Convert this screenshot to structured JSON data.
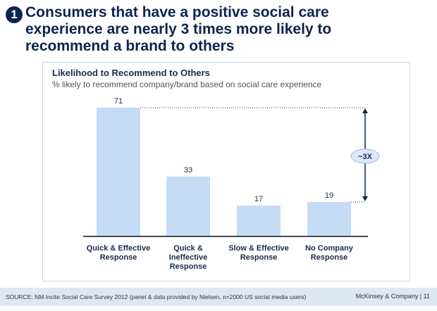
{
  "headline": {
    "number": "1",
    "line1": "Consumers that have a positive social care",
    "line2": "experience are nearly 3 times more likely to",
    "line3": "recommend a brand to others"
  },
  "chart_data": {
    "type": "bar",
    "title": "Likelihood to Recommend to Others",
    "subtitle": "% likely to recommend company/brand based on social care experience",
    "categories": [
      [
        "Quick & Effective",
        "Response"
      ],
      [
        "Quick &",
        "Ineffective",
        "Response"
      ],
      [
        "Slow & Effective",
        "Response"
      ],
      [
        "No Company",
        "Response"
      ]
    ],
    "values": [
      71,
      33,
      17,
      19
    ],
    "ylim": [
      0,
      71
    ],
    "grid": false,
    "bar_color": "#c6dcf5",
    "annotation": "~3X"
  },
  "footer": {
    "source": "SOURCE: NM Incite Social Care Survey 2012 (panel & data provided by Nielsen, n=2000 US social media users)",
    "brand": "McKinsey & Company  |  11"
  }
}
